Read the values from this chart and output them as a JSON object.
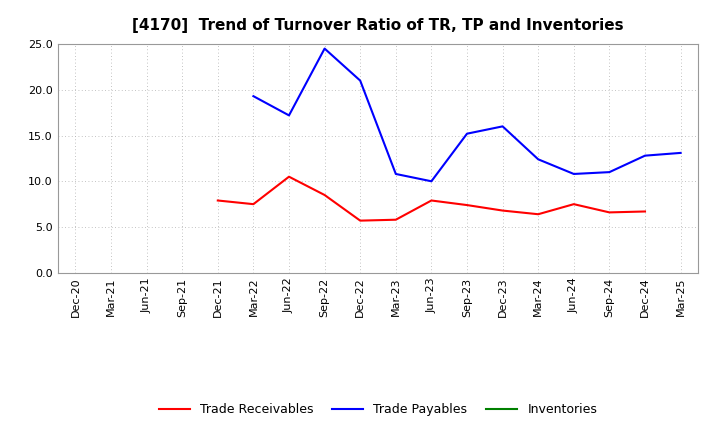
{
  "title": "[4170]  Trend of Turnover Ratio of TR, TP and Inventories",
  "xlabels": [
    "Dec-20",
    "Mar-21",
    "Jun-21",
    "Sep-21",
    "Dec-21",
    "Mar-22",
    "Jun-22",
    "Sep-22",
    "Dec-22",
    "Mar-23",
    "Jun-23",
    "Sep-23",
    "Dec-23",
    "Mar-24",
    "Jun-24",
    "Sep-24",
    "Dec-24",
    "Mar-25"
  ],
  "tr_x": [
    4,
    5,
    6,
    7,
    8,
    9,
    10,
    11,
    12,
    13,
    14,
    15,
    16
  ],
  "tr_y": [
    7.9,
    7.5,
    10.5,
    8.5,
    5.7,
    5.8,
    7.9,
    7.4,
    6.8,
    6.4,
    7.5,
    6.6,
    6.7
  ],
  "tp_x": [
    5,
    6,
    7,
    8,
    9,
    10,
    11,
    12,
    13,
    14,
    15,
    16,
    17
  ],
  "tp_y": [
    19.3,
    17.2,
    24.5,
    21.0,
    10.8,
    10.0,
    15.2,
    16.0,
    12.4,
    10.8,
    11.0,
    12.8,
    13.1
  ],
  "ylim": [
    0.0,
    25.0
  ],
  "yticks": [
    0.0,
    5.0,
    10.0,
    15.0,
    20.0,
    25.0
  ],
  "tr_color": "#ff0000",
  "tp_color": "#0000ff",
  "inv_color": "#008000",
  "background_color": "#ffffff",
  "grid_color": "#b0b0b0",
  "title_fontsize": 11,
  "tick_fontsize": 8,
  "legend_fontsize": 9
}
